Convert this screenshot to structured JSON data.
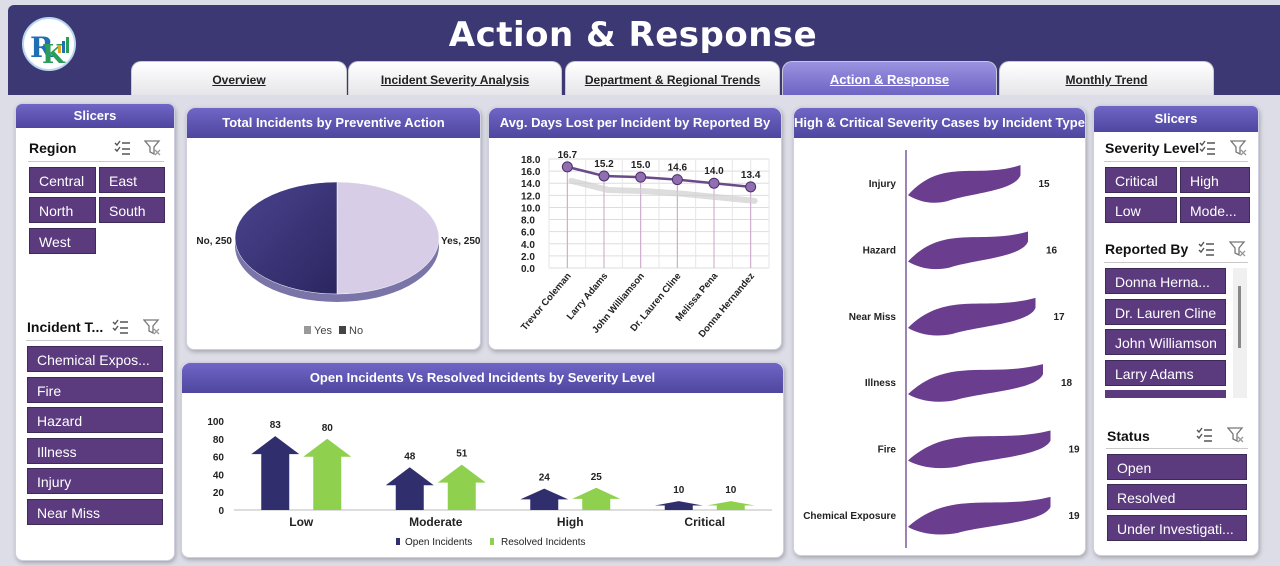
{
  "header": {
    "title": "Action & Response",
    "tabs": [
      {
        "label": "Overview",
        "active": false
      },
      {
        "label": "Incident Severity Analysis",
        "active": false
      },
      {
        "label": "Department & Regional Trends",
        "active": false
      },
      {
        "label": "Action & Response",
        "active": true
      },
      {
        "label": "Monthly Trend",
        "active": false
      }
    ]
  },
  "left_slicers": {
    "title": "Slicers",
    "region": {
      "title": "Region",
      "items": [
        "Central",
        "East",
        "North",
        "South",
        "West"
      ]
    },
    "incident_type": {
      "title": "Incident T...",
      "items": [
        "Chemical Expos...",
        "Fire",
        "Hazard",
        "Illness",
        "Injury",
        "Near Miss"
      ]
    }
  },
  "right_slicers": {
    "title": "Slicers",
    "severity": {
      "title": "Severity Level",
      "items": [
        "Critical",
        "High",
        "Low",
        "Mode..."
      ]
    },
    "reported_by": {
      "title": "Reported By",
      "items": [
        "Donna Herna...",
        "Dr. Lauren Cline",
        "John Williamson",
        "Larry Adams"
      ]
    },
    "status": {
      "title": "Status",
      "items": [
        "Open",
        "Resolved",
        "Under Investigati..."
      ]
    }
  },
  "colors": {
    "header": "#3c3873",
    "slicer_button": "#5b3a7e",
    "accent_purple": "#6a3d8f",
    "open": "#312e6e",
    "resolved": "#8fd14f",
    "pie_no": "#3b3577",
    "pie_yes": "#d8cde6"
  },
  "chart_data": [
    {
      "type": "pie",
      "title": "Total Incidents by Preventive Action",
      "categories": [
        "Yes",
        "No"
      ],
      "values": [
        250,
        250
      ],
      "data_labels": [
        "Yes, 250",
        "No, 250"
      ],
      "legend": [
        "Yes",
        "No"
      ],
      "legend_position": "bottom"
    },
    {
      "type": "line",
      "title": "Avg. Days Lost per Incident by Reported By",
      "categories": [
        "Trevor Coleman",
        "Larry Adams",
        "John Williamson",
        "Dr. Lauren Cline",
        "Melissa Pena",
        "Donna Hernandez"
      ],
      "values": [
        16.7,
        15.2,
        15.0,
        14.6,
        14.0,
        13.4
      ],
      "data_labels": [
        "16.7",
        "15.2",
        "15.0",
        "14.6",
        "14.0",
        "13.4"
      ],
      "ylim": [
        0,
        18
      ],
      "yticks": [
        "18.0",
        "16.0",
        "14.0",
        "12.0",
        "10.0",
        "8.0",
        "6.0",
        "4.0",
        "2.0",
        "0.0"
      ],
      "grid": true
    },
    {
      "type": "bar",
      "title": "High & Critical Severity Cases by Incident Type",
      "orientation": "horizontal",
      "categories": [
        "Injury",
        "Hazard",
        "Near Miss",
        "Illness",
        "Fire",
        "Chemical Exposure"
      ],
      "values": [
        15,
        16,
        17,
        18,
        19,
        19
      ],
      "data_labels": [
        "15",
        "16",
        "17",
        "18",
        "19",
        "19"
      ]
    },
    {
      "type": "bar",
      "title": "Open Incidents Vs Resolved Incidents by Severity Level",
      "categories": [
        "Low",
        "Moderate",
        "High",
        "Critical"
      ],
      "series": [
        {
          "name": "Open Incidents",
          "values": [
            83,
            48,
            24,
            10
          ],
          "labels": [
            "83",
            "48",
            "24",
            "10"
          ]
        },
        {
          "name": "Resolved Incidents",
          "values": [
            80,
            51,
            25,
            10
          ],
          "labels": [
            "80",
            "51",
            "25",
            "10"
          ]
        }
      ],
      "ylim": [
        0,
        100
      ],
      "yticks": [
        "100",
        "80",
        "60",
        "40",
        "20",
        "0"
      ],
      "legend_position": "bottom"
    }
  ]
}
